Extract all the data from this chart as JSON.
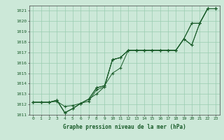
{
  "xlabel": "Graphe pression niveau de la mer (hPa)",
  "ylim": [
    1011,
    1021.5
  ],
  "xlim": [
    -0.5,
    23.5
  ],
  "yticks": [
    1011,
    1012,
    1013,
    1014,
    1015,
    1016,
    1017,
    1018,
    1019,
    1020,
    1021
  ],
  "xticks": [
    0,
    1,
    2,
    3,
    4,
    5,
    6,
    7,
    8,
    9,
    10,
    11,
    12,
    13,
    14,
    15,
    16,
    17,
    18,
    19,
    20,
    21,
    22,
    23
  ],
  "bg_color": "#cce8d8",
  "grid_color": "#99ccb0",
  "line_color": "#1a5c2a",
  "lines": [
    [
      1012.2,
      1012.2,
      1012.2,
      1012.3,
      1011.8,
      1011.9,
      1012.1,
      1012.3,
      1013.4,
      1013.7,
      1016.3,
      1016.5,
      1017.2,
      1017.2,
      1017.2,
      1017.2,
      1017.2,
      1017.2,
      1017.2,
      1018.3,
      1019.8,
      1019.8,
      1021.2,
      1021.2
    ],
    [
      1012.2,
      1012.2,
      1012.2,
      1012.4,
      1011.2,
      1011.6,
      1012.1,
      1012.5,
      1013.0,
      1013.7,
      1016.3,
      1016.5,
      1017.2,
      1017.2,
      1017.2,
      1017.2,
      1017.2,
      1017.2,
      1017.2,
      1018.3,
      1019.8,
      1019.8,
      1021.2,
      1021.2
    ],
    [
      1012.2,
      1012.2,
      1012.2,
      1012.4,
      1011.2,
      1011.6,
      1012.1,
      1012.5,
      1013.6,
      1013.8,
      1015.0,
      1015.5,
      1017.2,
      1017.2,
      1017.2,
      1017.2,
      1017.2,
      1017.2,
      1017.2,
      1018.3,
      1017.7,
      1019.8,
      1021.2,
      1021.2
    ],
    [
      1012.2,
      1012.2,
      1012.2,
      1012.4,
      1011.2,
      1011.6,
      1012.1,
      1012.5,
      1013.6,
      1013.8,
      1016.3,
      1016.5,
      1017.2,
      1017.2,
      1017.2,
      1017.2,
      1017.2,
      1017.2,
      1017.2,
      1018.3,
      1017.7,
      1019.8,
      1021.2,
      1021.2
    ]
  ],
  "xlabel_fontsize": 5.5,
  "tick_fontsize": 4.5,
  "linewidth": 0.7,
  "markersize": 3.0
}
